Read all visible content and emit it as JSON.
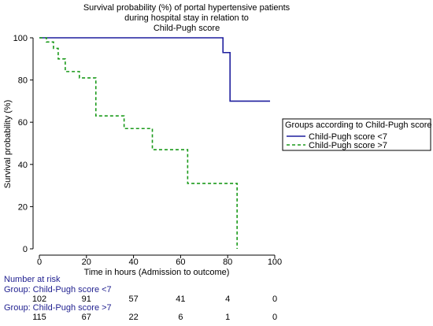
{
  "chart_data": {
    "type": "line",
    "title": [
      "Survival probability (%) of portal hypertensive patients",
      "during hospital stay in relation to",
      "Child-Pugh score"
    ],
    "xlabel": "Time in hours (Admission to outcome)",
    "ylabel": "Survival probability (%)",
    "xlim": [
      0,
      100
    ],
    "ylim": [
      0,
      100
    ],
    "x_ticks": [
      0,
      20,
      40,
      60,
      80,
      100
    ],
    "y_ticks": [
      0,
      20,
      40,
      60,
      80,
      100
    ],
    "grid": false,
    "legend": {
      "title": "Groups according to Child-Pugh score",
      "position": "right"
    },
    "series": [
      {
        "name": "Child-Pugh score <7",
        "color": "#1f1f9e",
        "style": "solid",
        "points": [
          [
            0,
            100
          ],
          [
            78,
            100
          ],
          [
            78,
            93
          ],
          [
            81,
            93
          ],
          [
            81,
            70
          ],
          [
            98,
            70
          ]
        ]
      },
      {
        "name": "Child-Pugh score >7",
        "color": "#1a9a1a",
        "style": "dashed",
        "points": [
          [
            0,
            100
          ],
          [
            3,
            100
          ],
          [
            3,
            98
          ],
          [
            6,
            98
          ],
          [
            6,
            95
          ],
          [
            8,
            95
          ],
          [
            8,
            90
          ],
          [
            11,
            90
          ],
          [
            11,
            84
          ],
          [
            17,
            84
          ],
          [
            17,
            81
          ],
          [
            24,
            81
          ],
          [
            24,
            63
          ],
          [
            36,
            63
          ],
          [
            36,
            57
          ],
          [
            48,
            57
          ],
          [
            48,
            47
          ],
          [
            63,
            47
          ],
          [
            63,
            31
          ],
          [
            84,
            31
          ],
          [
            84,
            0
          ]
        ]
      }
    ]
  },
  "risk_table": {
    "heading": "Number at risk",
    "groups": [
      {
        "label": "Group: Child-Pugh score <7",
        "values": [
          "102",
          "91",
          "57",
          "41",
          "4",
          "0"
        ]
      },
      {
        "label": "Group: Child-Pugh score >7",
        "values": [
          "115",
          "67",
          "22",
          "6",
          "1",
          "0"
        ]
      }
    ]
  }
}
